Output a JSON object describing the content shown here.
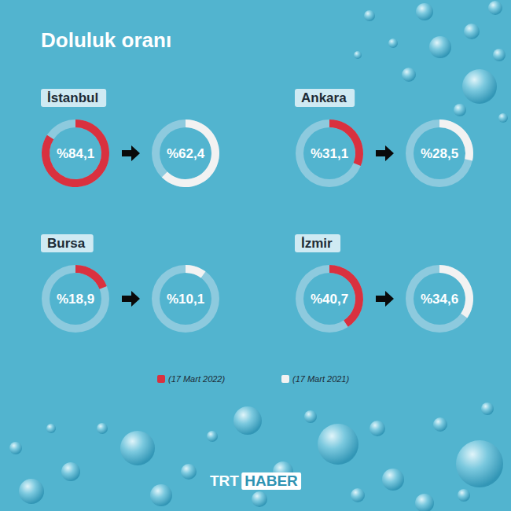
{
  "chart_data": {
    "type": "donut",
    "title": "Doluluk oranı",
    "categories": [
      "İstanbul",
      "Ankara",
      "Bursa",
      "İzmir"
    ],
    "series": [
      {
        "name": "(17 Mart 2022)",
        "color": "#d9313f",
        "values": [
          84.1,
          31.1,
          18.9,
          40.7
        ],
        "value_labels": [
          "%84,1",
          "%31,1",
          "%18,9",
          "%40,7"
        ]
      },
      {
        "name": "(17 Mart 2021)",
        "color": "#f2f2f2",
        "values": [
          62.4,
          28.5,
          10.1,
          34.6
        ],
        "value_labels": [
          "%62,4",
          "%28,5",
          "%10,1",
          "%34,6"
        ]
      }
    ],
    "ylim": [
      0,
      100
    ],
    "data_labels": true,
    "legend": "bottom",
    "source": [
      "TRT",
      "HABER"
    ]
  }
}
